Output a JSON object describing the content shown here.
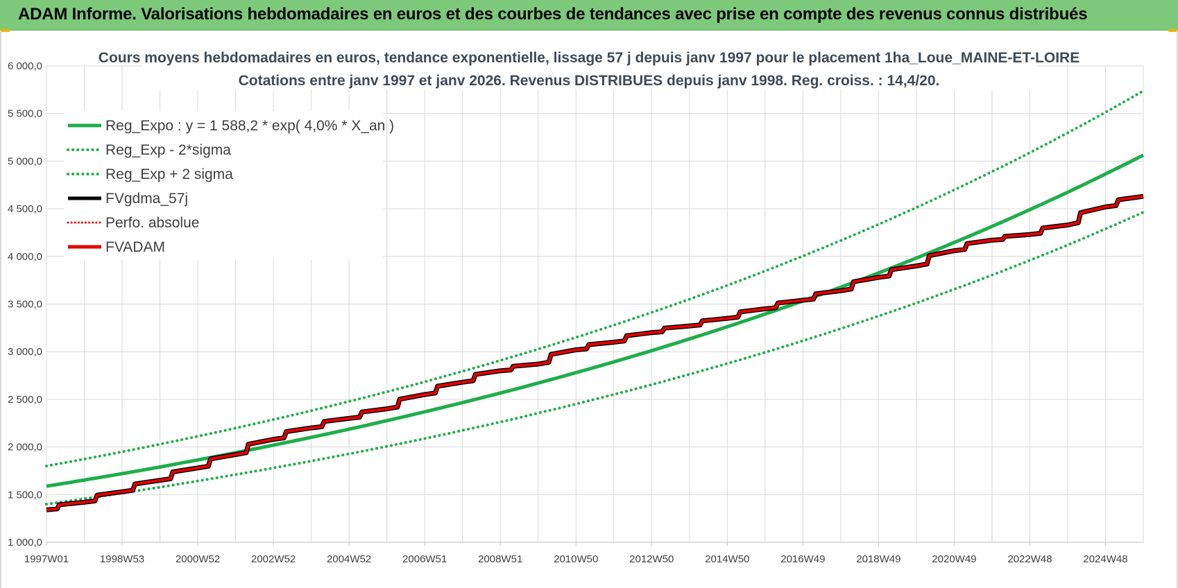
{
  "header": {
    "title": "ADAM Informe. Valorisations hebdomadaires en euros et des courbes de tendances avec prise en compte des revenus connus distribués"
  },
  "colors": {
    "header_bg": "#7dc97b",
    "green": "#1fae4b",
    "red": "#e60000",
    "black": "#000000",
    "grid": "#d9d9d9"
  },
  "chart_data": {
    "type": "line",
    "title": "Cours moyens hebdomadaires en euros, tendance exponentielle, lissage 57 j depuis janv 1997  pour le placement 1ha_Loue_MAINE-ET-LOIRE",
    "subtitle": "Cotations entre janv 1997 et janv 2026. Revenus DISTRIBUES depuis janv 1998.  Reg. croiss. : 14,4/20.",
    "ylim": [
      1000,
      6000
    ],
    "yticks": [
      "1 000,0",
      "1 500,0",
      "2 000,0",
      "2 500,0",
      "3 000,0",
      "3 500,0",
      "4 000,0",
      "4 500,0",
      "5 000,0",
      "5 500,0",
      "6 000,0"
    ],
    "ytick_values": [
      1000,
      1500,
      2000,
      2500,
      3000,
      3500,
      4000,
      4500,
      5000,
      5500,
      6000
    ],
    "xlim": [
      1997.0,
      2026.0
    ],
    "xticks": [
      "1997W01",
      "1998W53",
      "2000W52",
      "2002W52",
      "2004W52",
      "2006W51",
      "2008W51",
      "2010W50",
      "2012W50",
      "2014W50",
      "2016W49",
      "2018W49",
      "2020W49",
      "2022W48",
      "2024W48"
    ],
    "xtick_years": [
      1997.0,
      1999.0,
      2001.0,
      2003.0,
      2005.0,
      2007.0,
      2009.0,
      2011.0,
      2013.0,
      2015.0,
      2017.0,
      2019.0,
      2021.0,
      2023.0,
      2025.0
    ],
    "grid": true,
    "legend_position": "top-left",
    "legend": [
      {
        "name": "Reg_Expo : y = 1 588,2 * exp( 4,0% *  X_an )",
        "color": "#1fae4b",
        "style": "solid"
      },
      {
        "name": "Reg_Exp - 2*sigma",
        "color": "#1fae4b",
        "style": "dotted"
      },
      {
        "name": "Reg_Exp + 2 sigma",
        "color": "#1fae4b",
        "style": "dotted"
      },
      {
        "name": "FVgdma_57j",
        "color": "#000000",
        "style": "solid"
      },
      {
        "name": "Perfo. absolue",
        "color": "#e60000",
        "style": "dotted"
      },
      {
        "name": "FVADAM",
        "color": "#e60000",
        "style": "solid"
      }
    ],
    "x": [
      1997.0,
      1998.0,
      1999.0,
      2000.0,
      2001.0,
      2002.0,
      2003.0,
      2004.0,
      2005.0,
      2006.0,
      2007.0,
      2008.0,
      2009.0,
      2010.0,
      2011.0,
      2012.0,
      2013.0,
      2014.0,
      2015.0,
      2016.0,
      2017.0,
      2018.0,
      2019.0,
      2020.0,
      2021.0,
      2022.0,
      2023.0,
      2024.0,
      2025.0,
      2026.0
    ],
    "series": [
      {
        "name": "Reg_Expo : y = 1 588,2 * exp( 4,0% *  X_an )",
        "values": [
          1588,
          1653,
          1720,
          1790,
          1864,
          1940,
          2019,
          2101,
          2187,
          2276,
          2369,
          2466,
          2566,
          2671,
          2780,
          2893,
          3011,
          3134,
          3262,
          3395,
          3533,
          3677,
          3827,
          3983,
          4146,
          4315,
          4491,
          4674,
          4865,
          5063
        ]
      },
      {
        "name": "Reg_Exp - 2*sigma",
        "values": [
          1400,
          1457,
          1516,
          1578,
          1643,
          1710,
          1780,
          1852,
          1928,
          2006,
          2088,
          2174,
          2262,
          2355,
          2451,
          2551,
          2654,
          2763,
          2876,
          2993,
          3115,
          3242,
          3374,
          3511,
          3655,
          3804,
          3959,
          4120,
          4289,
          4464
        ]
      },
      {
        "name": "Reg_Exp + 2 sigma",
        "values": [
          1800,
          1873,
          1949,
          2029,
          2112,
          2198,
          2288,
          2381,
          2478,
          2579,
          2684,
          2794,
          2908,
          3027,
          3150,
          3279,
          3412,
          3551,
          3696,
          3847,
          4004,
          4167,
          4337,
          4514,
          4698,
          4890,
          5089,
          5297,
          5513,
          5738
        ]
      },
      {
        "name": "FVgdma_57j",
        "values": [
          1340,
          1420,
          1530,
          1650,
          1780,
          1920,
          2080,
          2200,
          2300,
          2400,
          2550,
          2680,
          2800,
          2870,
          3020,
          3100,
          3200,
          3270,
          3350,
          3450,
          3540,
          3640,
          3780,
          3900,
          4060,
          4170,
          4230,
          4330,
          4520,
          4630
        ]
      },
      {
        "name": "FVADAM",
        "values": [
          1340,
          1420,
          1530,
          1650,
          1780,
          1920,
          2080,
          2200,
          2300,
          2400,
          2550,
          2680,
          2800,
          2870,
          3020,
          3100,
          3200,
          3270,
          3350,
          3450,
          3540,
          3640,
          3780,
          3900,
          4060,
          4170,
          4230,
          4330,
          4520,
          4630
        ]
      }
    ]
  }
}
